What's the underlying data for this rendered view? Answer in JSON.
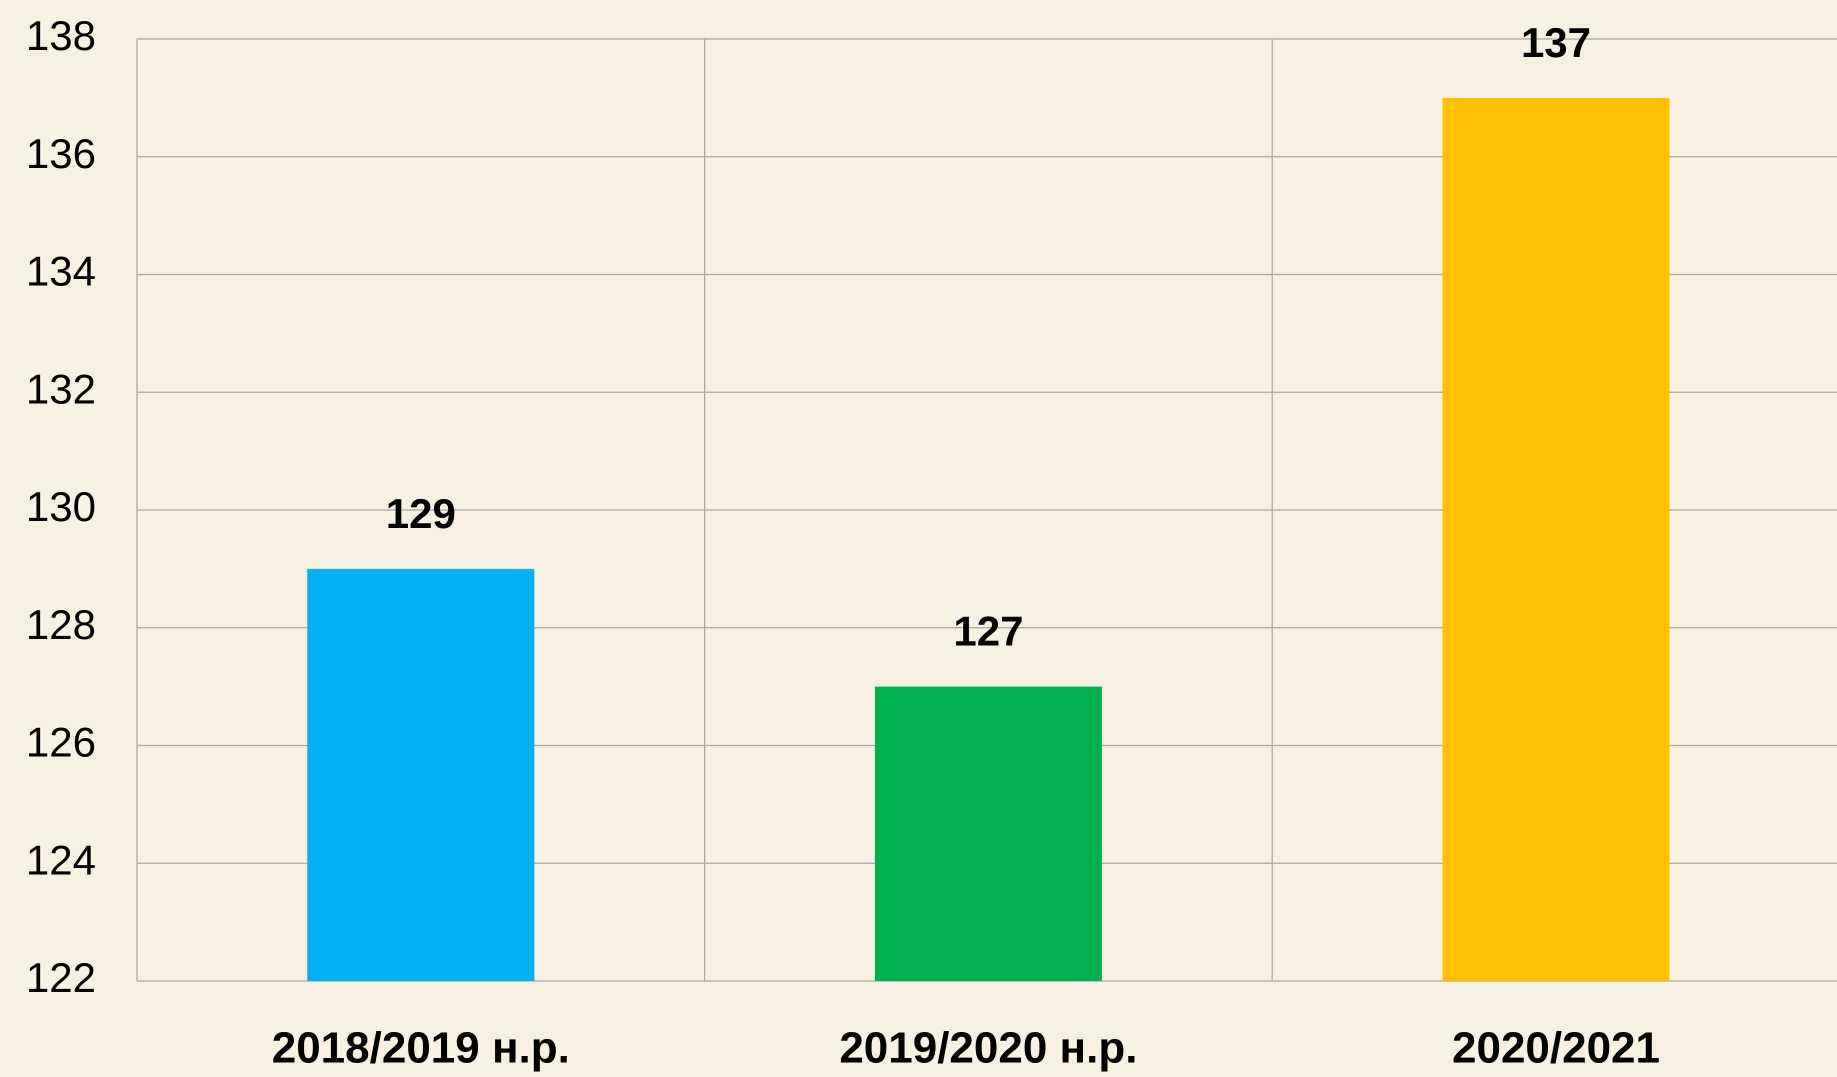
{
  "chart_data": {
    "type": "bar",
    "categories": [
      "2018/2019 н.р.",
      "2019/2020 н.р.",
      "2020/2021"
    ],
    "values": [
      129,
      127,
      137
    ],
    "colors": [
      "#00b0f0",
      "#00b050",
      "#ffc000"
    ],
    "ylim": [
      122,
      138
    ],
    "yticks": [
      122,
      124,
      126,
      128,
      130,
      132,
      134,
      136,
      138
    ],
    "grid": true
  }
}
